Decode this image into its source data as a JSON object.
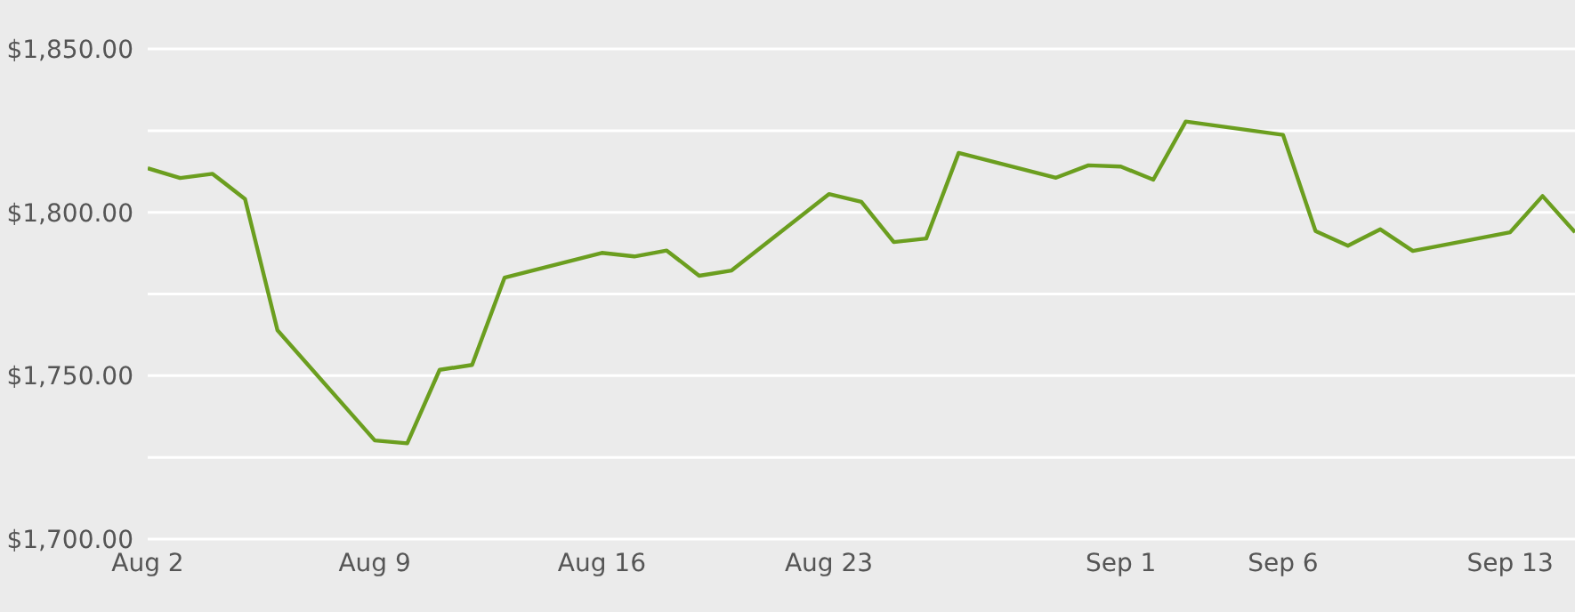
{
  "chart_data": {
    "type": "line",
    "x": [
      "--08-02",
      "--08-03",
      "--08-04",
      "--08-05",
      "--08-06",
      "--08-09",
      "--08-10",
      "--08-11",
      "--08-12",
      "--08-13",
      "--08-16",
      "--08-17",
      "--08-18",
      "--08-19",
      "--08-20",
      "--08-23",
      "--08-24",
      "--08-25",
      "--08-26",
      "--08-27",
      "--08-30",
      "--08-31",
      "--09-01",
      "--09-02",
      "--09-03",
      "--09-06",
      "--09-07",
      "--09-08",
      "--09-09",
      "--09-10",
      "--09-13",
      "--09-14",
      "--09-15"
    ],
    "series": [
      {
        "color": "#6b9e1f",
        "values": [
          1813.5,
          1810.5,
          1811.8,
          1804.1,
          1763.9,
          1730.2,
          1729.3,
          1751.8,
          1753.3,
          1780,
          1787.6,
          1786.5,
          1788.3,
          1780.6,
          1782.2,
          1805.6,
          1803.2,
          1790.9,
          1792,
          1818.2,
          1810.6,
          1814.4,
          1814,
          1810,
          1827.8,
          1823.7,
          1794.3,
          1789.8,
          1794.8,
          1788.2,
          1793.9,
          1805,
          1793.9
        ]
      }
    ],
    "xlim": [
      "--08-02",
      "--09-15"
    ],
    "xticks": [
      {
        "value": "--08-02",
        "label": "Aug 2"
      },
      {
        "value": "--08-09",
        "label": "Aug 9"
      },
      {
        "value": "--08-16",
        "label": "Aug 16"
      },
      {
        "value": "--08-23",
        "label": "Aug 23"
      },
      {
        "value": "--09-01",
        "label": "Sep 1"
      },
      {
        "value": "--09-06",
        "label": "Sep 6"
      },
      {
        "value": "--09-13",
        "label": "Sep 13"
      }
    ],
    "ylim": [
      1700,
      1865
    ],
    "yticks": [
      {
        "value": 1700,
        "label": "$1,700.00"
      },
      {
        "value": 1725,
        "label": null
      },
      {
        "value": 1750,
        "label": "$1,750.00"
      },
      {
        "value": 1775,
        "label": null
      },
      {
        "value": 1800,
        "label": "$1,800.00"
      },
      {
        "value": 1825,
        "label": null
      },
      {
        "value": 1850,
        "label": "$1,850.00"
      }
    ],
    "grid": "y",
    "marker": "none",
    "line_style": "solid",
    "legend": false
  }
}
